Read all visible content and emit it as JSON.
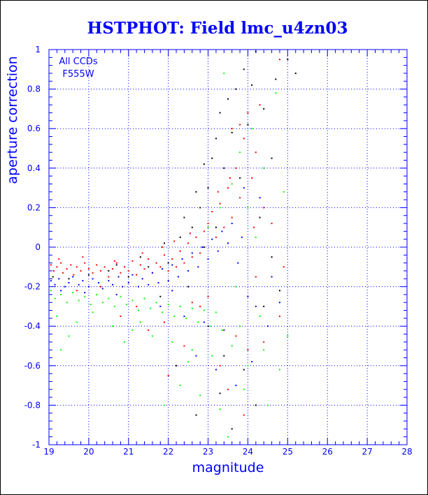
{
  "chart_data": {
    "type": "scatter",
    "title": "HSTPHOT: Field lmc_u4zn03",
    "xlabel": "magnitude",
    "ylabel": "aperture correction",
    "annotation": [
      "All CCDs",
      "F555W"
    ],
    "xlim": [
      19,
      28
    ],
    "ylim": [
      -1,
      1
    ],
    "x_ticks": [
      19,
      20,
      21,
      22,
      23,
      24,
      25,
      26,
      27,
      28
    ],
    "y_ticks": [
      -1,
      -0.8,
      -0.6,
      -0.4,
      -0.2,
      0,
      0.2,
      0.4,
      0.6,
      0.8,
      1
    ],
    "x_tick_labels": [
      "19",
      "20",
      "21",
      "22",
      "23",
      "24",
      "25",
      "26",
      "27",
      "28"
    ],
    "y_tick_labels": [
      "-1",
      "-0.8",
      "-0.6",
      "-0.4",
      "-0.2",
      "0",
      "0.2",
      "0.4",
      "0.6",
      "0.8",
      "1"
    ],
    "grid": "dashed",
    "colors": {
      "frame": "#0000ff",
      "text": "#0000ff"
    },
    "series": [
      {
        "color": "#ff0000",
        "points": [
          [
            19.05,
            -0.09
          ],
          [
            19.12,
            -0.12
          ],
          [
            19.2,
            -0.1
          ],
          [
            19.3,
            -0.08
          ],
          [
            19.35,
            -0.13
          ],
          [
            19.45,
            -0.11
          ],
          [
            19.55,
            -0.09
          ],
          [
            19.62,
            -0.14
          ],
          [
            19.7,
            -0.1
          ],
          [
            19.8,
            -0.12
          ],
          [
            19.9,
            -0.08
          ],
          [
            20.0,
            -0.11
          ],
          [
            20.1,
            -0.13
          ],
          [
            20.2,
            -0.09
          ],
          [
            20.3,
            -0.12
          ],
          [
            20.4,
            -0.1
          ],
          [
            20.5,
            -0.15
          ],
          [
            20.6,
            -0.11
          ],
          [
            20.7,
            -0.08
          ],
          [
            20.8,
            -0.13
          ],
          [
            20.9,
            -0.1
          ],
          [
            21.0,
            -0.12
          ],
          [
            21.1,
            -0.07
          ],
          [
            21.2,
            -0.14
          ],
          [
            21.3,
            -0.09
          ],
          [
            21.4,
            -0.11
          ],
          [
            21.5,
            -0.06
          ],
          [
            21.6,
            -0.13
          ],
          [
            21.7,
            -0.08
          ],
          [
            21.8,
            -0.1
          ],
          [
            21.9,
            -0.04
          ],
          [
            22.0,
            -0.12
          ],
          [
            22.1,
            -0.06
          ],
          [
            22.2,
            -0.1
          ],
          [
            22.3,
            -0.02
          ],
          [
            22.4,
            -0.08
          ],
          [
            22.5,
            0.02
          ],
          [
            22.6,
            -0.05
          ],
          [
            22.7,
            0.05
          ],
          [
            22.8,
            -0.03
          ],
          [
            22.9,
            0.08
          ],
          [
            23.0,
            0.12
          ],
          [
            23.1,
            0.18
          ],
          [
            23.2,
            0.05
          ],
          [
            23.3,
            0.22
          ],
          [
            23.4,
            0.1
          ],
          [
            23.5,
            0.3
          ],
          [
            23.6,
            0.15
          ],
          [
            23.7,
            0.4
          ],
          [
            23.8,
            0.25
          ],
          [
            23.9,
            0.55
          ],
          [
            24.0,
            0.68
          ],
          [
            24.1,
            0.35
          ],
          [
            24.2,
            0.48
          ],
          [
            24.4,
            0.2
          ],
          [
            24.6,
            0.12
          ],
          [
            24.8,
            0.95
          ],
          [
            23.8,
            0.62
          ],
          [
            24.3,
            0.72
          ],
          [
            23.6,
            0.6
          ],
          [
            21.5,
            -0.42
          ],
          [
            21.9,
            -0.38
          ],
          [
            22.4,
            -0.5
          ],
          [
            22.8,
            -0.3
          ],
          [
            23.3,
            -0.6
          ],
          [
            23.7,
            -0.45
          ],
          [
            24.0,
            -0.52
          ],
          [
            24.4,
            -0.48
          ],
          [
            24.8,
            -0.35
          ],
          [
            22.0,
            -0.65
          ],
          [
            23.5,
            -0.72
          ],
          [
            22.6,
            -0.28
          ],
          [
            21.2,
            -0.3
          ],
          [
            20.8,
            -0.35
          ],
          [
            19.7,
            -0.22
          ],
          [
            20.3,
            -0.2
          ],
          [
            23.0,
            -0.25
          ],
          [
            24.2,
            -0.15
          ],
          [
            24.9,
            -0.1
          ],
          [
            23.9,
            -0.85
          ],
          [
            19.25,
            -0.06
          ],
          [
            19.85,
            -0.05
          ],
          [
            20.65,
            -0.07
          ],
          [
            21.35,
            -0.03
          ],
          [
            21.85,
            0.0
          ],
          [
            22.15,
            0.03
          ],
          [
            22.55,
            0.07
          ],
          [
            23.25,
            0.28
          ],
          [
            23.55,
            0.35
          ],
          [
            24.15,
            0.1
          ]
        ]
      },
      {
        "color": "#000000",
        "points": [
          [
            19.1,
            -0.15
          ],
          [
            19.5,
            -0.16
          ],
          [
            20.0,
            -0.14
          ],
          [
            20.5,
            -0.12
          ],
          [
            21.0,
            -0.15
          ],
          [
            21.5,
            -0.1
          ],
          [
            22.0,
            -0.08
          ],
          [
            22.3,
            0.05
          ],
          [
            22.6,
            0.1
          ],
          [
            22.8,
            0.2
          ],
          [
            23.0,
            0.3
          ],
          [
            23.1,
            0.45
          ],
          [
            23.2,
            0.55
          ],
          [
            23.3,
            0.68
          ],
          [
            23.5,
            0.75
          ],
          [
            23.6,
            0.58
          ],
          [
            23.7,
            0.8
          ],
          [
            23.9,
            0.9
          ],
          [
            24.0,
            0.62
          ],
          [
            24.2,
            0.99
          ],
          [
            24.4,
            0.7
          ],
          [
            24.6,
            0.45
          ],
          [
            24.7,
            0.85
          ],
          [
            25.0,
            0.95
          ],
          [
            24.3,
            0.15
          ],
          [
            23.4,
            0.4
          ],
          [
            22.9,
            0.42
          ],
          [
            22.7,
            0.28
          ],
          [
            23.8,
            0.35
          ],
          [
            24.1,
            0.82
          ],
          [
            22.5,
            -0.2
          ],
          [
            23.0,
            -0.4
          ],
          [
            23.4,
            -0.55
          ],
          [
            23.9,
            -0.62
          ],
          [
            22.7,
            -0.85
          ],
          [
            23.3,
            -0.74
          ],
          [
            24.4,
            -0.3
          ],
          [
            24.8,
            -0.22
          ],
          [
            21.8,
            -0.25
          ],
          [
            22.2,
            -0.6
          ],
          [
            23.6,
            -0.92
          ],
          [
            24.2,
            -0.8
          ],
          [
            22.9,
            0.0
          ],
          [
            23.2,
            0.1
          ],
          [
            22.4,
            0.15
          ],
          [
            21.9,
            0.02
          ],
          [
            21.3,
            -0.05
          ],
          [
            20.7,
            -0.09
          ],
          [
            24.6,
            -0.05
          ],
          [
            25.2,
            0.88
          ]
        ]
      },
      {
        "color": "#0000ff",
        "points": [
          [
            19.05,
            -0.17
          ],
          [
            19.15,
            -0.19
          ],
          [
            19.25,
            -0.16
          ],
          [
            19.4,
            -0.2
          ],
          [
            19.5,
            -0.18
          ],
          [
            19.6,
            -0.15
          ],
          [
            19.75,
            -0.19
          ],
          [
            19.85,
            -0.17
          ],
          [
            20.0,
            -0.2
          ],
          [
            20.1,
            -0.16
          ],
          [
            20.25,
            -0.18
          ],
          [
            20.35,
            -0.21
          ],
          [
            20.5,
            -0.17
          ],
          [
            20.6,
            -0.19
          ],
          [
            20.75,
            -0.15
          ],
          [
            20.85,
            -0.2
          ],
          [
            21.0,
            -0.18
          ],
          [
            21.1,
            -0.14
          ],
          [
            21.25,
            -0.2
          ],
          [
            21.35,
            -0.16
          ],
          [
            21.5,
            -0.19
          ],
          [
            21.6,
            -0.13
          ],
          [
            21.75,
            -0.18
          ],
          [
            21.85,
            -0.11
          ],
          [
            22.0,
            -0.17
          ],
          [
            22.1,
            -0.09
          ],
          [
            22.25,
            -0.15
          ],
          [
            22.35,
            -0.06
          ],
          [
            22.5,
            -0.12
          ],
          [
            22.6,
            -0.03
          ],
          [
            22.75,
            -0.1
          ],
          [
            22.85,
            0.0
          ],
          [
            23.0,
            -0.06
          ],
          [
            23.1,
            0.04
          ],
          [
            23.25,
            -0.02
          ],
          [
            23.35,
            0.08
          ],
          [
            23.5,
            0.02
          ],
          [
            23.6,
            0.12
          ],
          [
            23.75,
            -0.08
          ],
          [
            23.85,
            0.05
          ],
          [
            24.0,
            -0.25
          ],
          [
            24.2,
            -0.3
          ],
          [
            24.5,
            -0.4
          ],
          [
            24.8,
            -0.28
          ],
          [
            24.3,
            0.25
          ],
          [
            23.9,
            0.3
          ],
          [
            22.4,
            -0.35
          ],
          [
            22.9,
            -0.38
          ],
          [
            23.4,
            -0.42
          ],
          [
            21.8,
            -0.3
          ],
          [
            22.7,
            -0.55
          ],
          [
            23.2,
            -0.62
          ],
          [
            23.7,
            -0.7
          ],
          [
            24.1,
            -0.58
          ],
          [
            24.6,
            -0.15
          ],
          [
            19.3,
            -0.22
          ],
          [
            19.9,
            -0.23
          ],
          [
            20.7,
            -0.24
          ],
          [
            21.4,
            -0.26
          ],
          [
            22.1,
            -0.22
          ]
        ]
      },
      {
        "color": "#00ff00",
        "points": [
          [
            19.05,
            -0.22
          ],
          [
            19.15,
            -0.26
          ],
          [
            19.3,
            -0.24
          ],
          [
            19.45,
            -0.28
          ],
          [
            19.6,
            -0.23
          ],
          [
            19.75,
            -0.27
          ],
          [
            19.9,
            -0.25
          ],
          [
            20.05,
            -0.29
          ],
          [
            20.2,
            -0.24
          ],
          [
            20.35,
            -0.28
          ],
          [
            20.5,
            -0.26
          ],
          [
            20.65,
            -0.3
          ],
          [
            20.8,
            -0.25
          ],
          [
            20.95,
            -0.29
          ],
          [
            21.1,
            -0.27
          ],
          [
            21.25,
            -0.32
          ],
          [
            21.4,
            -0.26
          ],
          [
            21.55,
            -0.31
          ],
          [
            21.7,
            -0.28
          ],
          [
            21.85,
            -0.33
          ],
          [
            22.0,
            -0.29
          ],
          [
            22.15,
            -0.35
          ],
          [
            22.3,
            -0.3
          ],
          [
            22.45,
            -0.36
          ],
          [
            22.6,
            -0.31
          ],
          [
            22.75,
            -0.38
          ],
          [
            22.9,
            -0.32
          ],
          [
            23.05,
            -0.4
          ],
          [
            23.2,
            -0.33
          ],
          [
            23.35,
            -0.42
          ],
          [
            19.2,
            -0.35
          ],
          [
            19.7,
            -0.38
          ],
          [
            20.1,
            -0.33
          ],
          [
            20.6,
            -0.4
          ],
          [
            21.1,
            -0.42
          ],
          [
            21.6,
            -0.45
          ],
          [
            22.1,
            -0.48
          ],
          [
            22.6,
            -0.52
          ],
          [
            23.1,
            -0.55
          ],
          [
            23.6,
            -0.5
          ],
          [
            24.0,
            -0.6
          ],
          [
            24.4,
            -0.52
          ],
          [
            24.8,
            -0.62
          ],
          [
            22.3,
            -0.7
          ],
          [
            22.8,
            -0.75
          ],
          [
            23.3,
            -0.82
          ],
          [
            23.5,
            -0.96
          ],
          [
            21.9,
            -0.8
          ],
          [
            23.8,
            -0.4
          ],
          [
            24.3,
            -0.35
          ],
          [
            23.0,
            0.1
          ],
          [
            23.3,
            0.2
          ],
          [
            23.6,
            0.32
          ],
          [
            23.8,
            0.48
          ],
          [
            24.1,
            0.6
          ],
          [
            24.4,
            0.4
          ],
          [
            24.7,
            0.78
          ],
          [
            24.9,
            0.28
          ],
          [
            23.4,
            0.88
          ],
          [
            24.2,
            0.05
          ],
          [
            19.5,
            -0.45
          ],
          [
            19.3,
            -0.52
          ],
          [
            20.9,
            -0.48
          ],
          [
            21.3,
            -0.38
          ],
          [
            22.5,
            -0.58
          ],
          [
            23.9,
            -0.72
          ],
          [
            24.5,
            -0.8
          ],
          [
            25.0,
            -0.45
          ],
          [
            24.0,
            0.2
          ],
          [
            23.7,
            -0.2
          ]
        ]
      }
    ]
  }
}
